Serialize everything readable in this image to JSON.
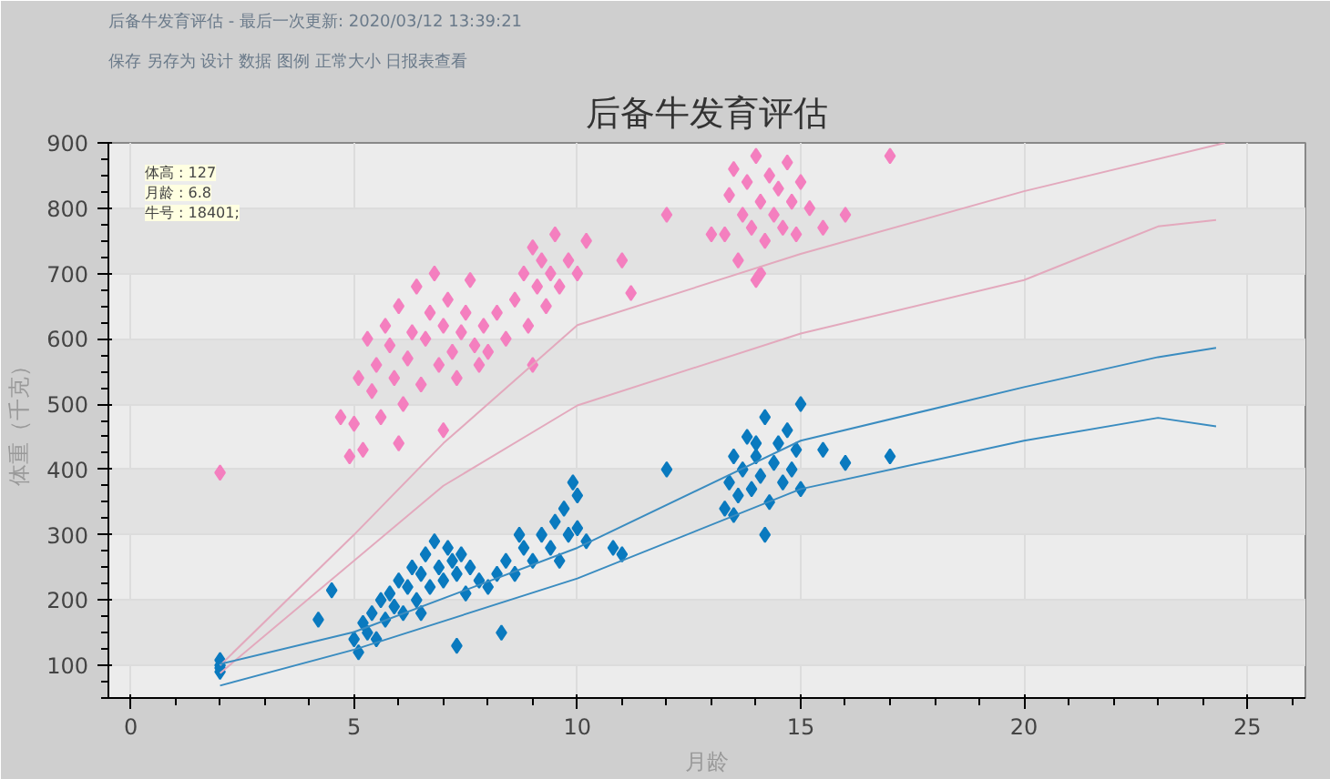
{
  "chart_data": {
    "type": "scatter",
    "title": "后备牛发育评估",
    "xlabel": "月龄",
    "ylabel": "体重（千克）",
    "annotations": [
      "后备牛发育评估 - 最后一次更新: 2020/03/12 13:39:21",
      "保存  另存为  设计  数据  图例  正常大小  日报表查看",
      "体高 : 127\n月龄 : 6.8\n牛号 : 18401;"
    ],
    "xlim": [
      -0.5,
      26.3
    ],
    "ylim": [
      50,
      900
    ],
    "xticks": [
      0,
      5,
      10,
      15,
      20,
      25
    ],
    "yticks": [
      100,
      200,
      300,
      400,
      500,
      600,
      700,
      800,
      900
    ],
    "grid": true,
    "series": [
      {
        "marker": "diamond",
        "color": "#f47fbf",
        "x": [
          2.0,
          5.0,
          5.1,
          5.2,
          5.3,
          5.4,
          5.5,
          5.6,
          5.7,
          5.8,
          5.9,
          6.0,
          6.1,
          6.2,
          6.3,
          6.4,
          6.5,
          6.6,
          6.7,
          6.8,
          6.9,
          7.0,
          7.1,
          7.2,
          7.3,
          7.4,
          7.5,
          7.6,
          7.7,
          7.8,
          7.9,
          8.0,
          8.2,
          8.4,
          4.7,
          4.9,
          6.0,
          7.0,
          8.6,
          8.8,
          9.0,
          9.1,
          9.2,
          9.4,
          9.5,
          9.6,
          9.8,
          10.0,
          9.3,
          8.9,
          10.2,
          11.0,
          11.2,
          12.0,
          9.0,
          13.3,
          13.4,
          13.5,
          13.6,
          13.7,
          13.8,
          13.9,
          14.0,
          14.1,
          14.2,
          14.3,
          14.4,
          14.5,
          14.6,
          14.7,
          14.8,
          14.9,
          15.0,
          15.2,
          15.5,
          16.0,
          17.0,
          13.0,
          14.0,
          14.1
        ],
        "values": [
          395,
          470,
          540,
          430,
          600,
          520,
          560,
          480,
          620,
          590,
          540,
          650,
          500,
          570,
          610,
          680,
          530,
          600,
          640,
          700,
          560,
          620,
          660,
          580,
          540,
          610,
          640,
          690,
          590,
          560,
          620,
          580,
          640,
          600,
          480,
          420,
          440,
          460,
          660,
          700,
          740,
          680,
          720,
          700,
          760,
          680,
          720,
          700,
          650,
          620,
          750,
          720,
          670,
          790,
          560,
          760,
          820,
          860,
          720,
          790,
          840,
          770,
          880,
          810,
          750,
          850,
          790,
          830,
          770,
          870,
          810,
          760,
          840,
          800,
          770,
          790,
          880,
          760,
          690,
          700
        ]
      },
      {
        "marker": "diamond",
        "color": "#0a7abf",
        "x": [
          2.0,
          2.0,
          2.0,
          2.0,
          5.0,
          5.1,
          5.2,
          5.3,
          5.4,
          5.5,
          5.6,
          5.7,
          5.8,
          5.9,
          6.0,
          6.1,
          6.2,
          6.3,
          6.4,
          6.5,
          6.6,
          6.7,
          6.8,
          6.9,
          7.0,
          7.1,
          7.2,
          7.3,
          7.4,
          7.5,
          7.6,
          7.8,
          8.0,
          8.2,
          4.5,
          4.2,
          6.5,
          7.3,
          8.3,
          8.4,
          8.6,
          8.8,
          9.0,
          9.2,
          9.4,
          9.5,
          9.6,
          9.7,
          9.8,
          10.0,
          10.0,
          9.9,
          10.2,
          10.8,
          11.0,
          8.7,
          13.3,
          13.4,
          13.5,
          13.6,
          13.7,
          13.8,
          13.9,
          14.0,
          14.1,
          14.2,
          14.3,
          14.4,
          14.5,
          14.6,
          14.7,
          14.8,
          14.9,
          15.0,
          15.0,
          13.5,
          14.2,
          12.0,
          16.0,
          17.0,
          15.5,
          14.0
        ],
        "values": [
          90,
          100,
          108,
          96,
          140,
          120,
          165,
          150,
          180,
          140,
          200,
          170,
          210,
          190,
          230,
          180,
          220,
          250,
          200,
          240,
          270,
          220,
          290,
          250,
          230,
          280,
          260,
          240,
          270,
          210,
          250,
          230,
          220,
          240,
          215,
          170,
          180,
          130,
          150,
          260,
          240,
          280,
          260,
          300,
          280,
          320,
          260,
          340,
          300,
          360,
          310,
          380,
          290,
          280,
          270,
          300,
          340,
          380,
          420,
          360,
          400,
          450,
          370,
          420,
          390,
          480,
          350,
          410,
          440,
          380,
          460,
          400,
          430,
          500,
          370,
          330,
          300,
          400,
          410,
          420,
          430,
          440
        ]
      },
      {
        "type": "line",
        "color": "#e3a9bd",
        "x": [
          2,
          5,
          7,
          10,
          15,
          20,
          24.5
        ],
        "values": [
          100,
          300,
          440,
          621,
          730,
          826,
          900
        ]
      },
      {
        "type": "line",
        "color": "#e3a9bd",
        "x": [
          2,
          7,
          10,
          15,
          20,
          23,
          24.3
        ],
        "values": [
          88,
          375,
          498,
          608,
          690,
          772,
          782
        ]
      },
      {
        "type": "line",
        "color": "#3a8cc0",
        "x": [
          2,
          5,
          10,
          15,
          20,
          23,
          24.3
        ],
        "values": [
          102,
          151,
          280,
          444,
          526,
          572,
          586
        ]
      },
      {
        "type": "line",
        "color": "#3a8cc0",
        "x": [
          2,
          5,
          10,
          15,
          20,
          23,
          24.3
        ],
        "values": [
          69,
          124,
          233,
          370,
          444,
          479,
          466
        ]
      }
    ]
  }
}
